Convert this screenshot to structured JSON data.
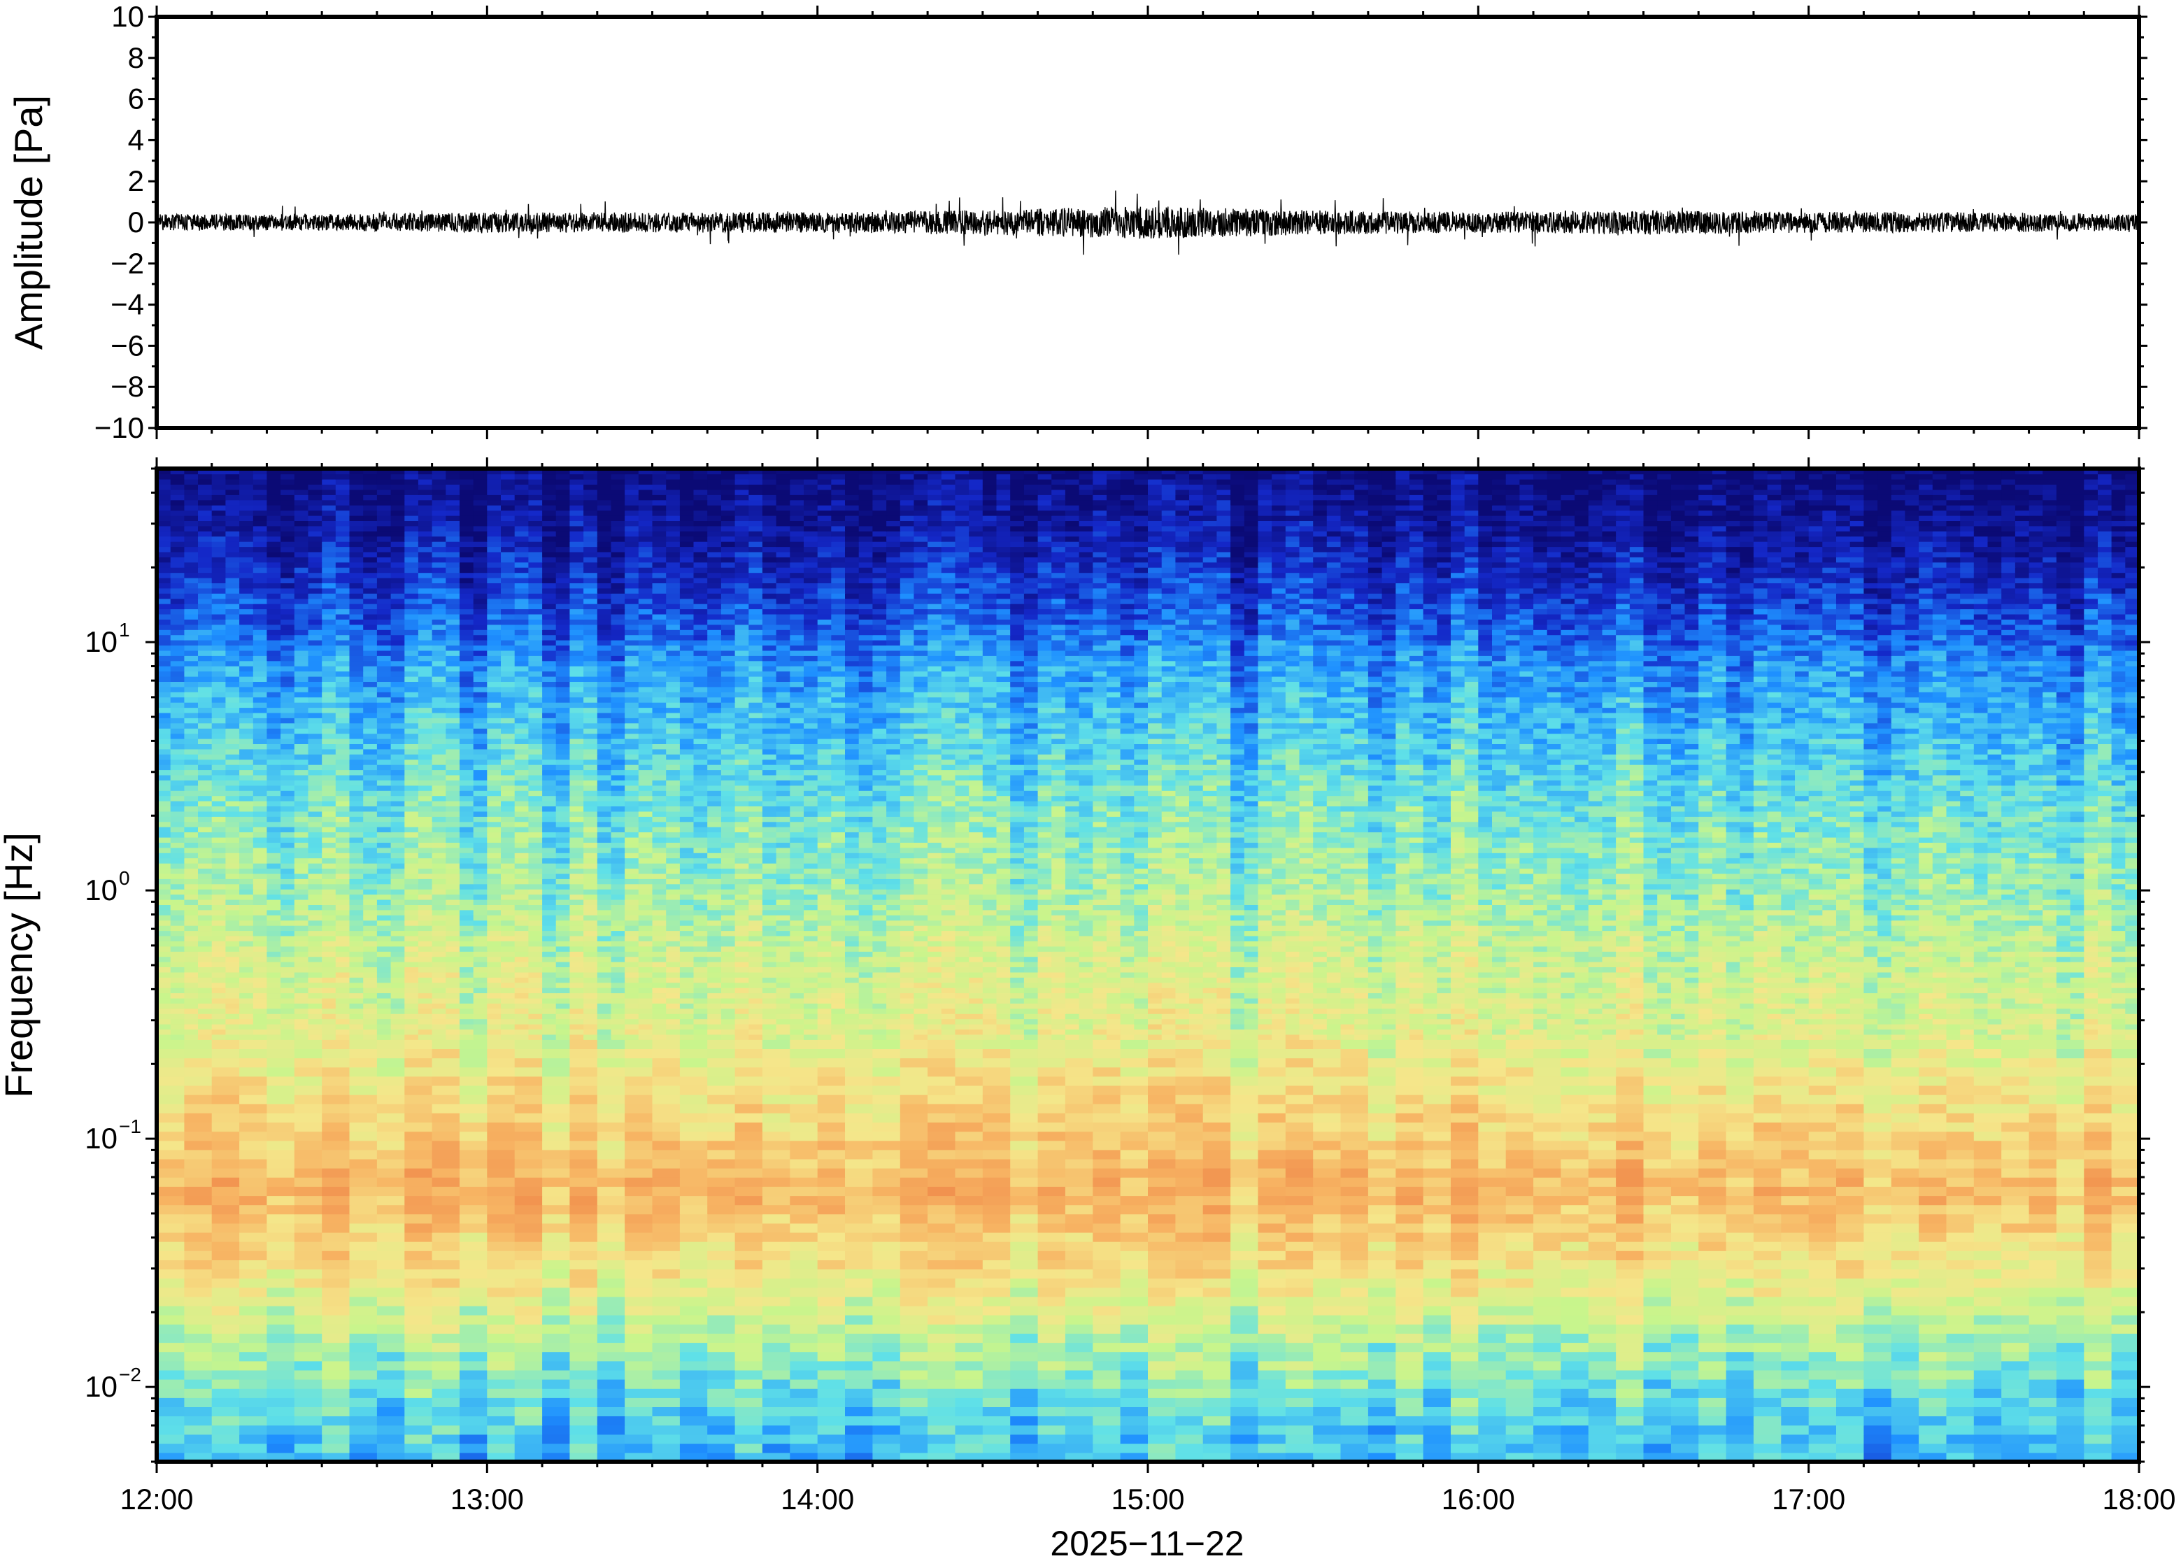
{
  "chart_data": [
    {
      "type": "line",
      "name": "waveform",
      "ylabel": "Amplitude [Pa]",
      "ylim": [
        -10,
        10
      ],
      "yticks": [
        10,
        8,
        6,
        4,
        2,
        0,
        -2,
        -4,
        -6,
        -8,
        -10
      ],
      "ytick_labels": [
        "10",
        "8",
        "6",
        "4",
        "2",
        "0",
        "−2",
        "−4",
        "−6",
        "−8",
        "−10"
      ],
      "xlim": [
        "12:00",
        "18:00"
      ],
      "series": [
        {
          "color": "#000000",
          "baseline": 0,
          "x_hours": [
            12.0,
            12.5,
            13.0,
            13.5,
            14.0,
            14.5,
            15.0,
            15.5,
            16.0,
            16.5,
            17.0,
            17.5,
            18.0
          ],
          "envelope_pa": [
            0.4,
            0.4,
            0.5,
            0.5,
            0.5,
            0.6,
            0.8,
            0.6,
            0.5,
            0.6,
            0.5,
            0.5,
            0.4
          ]
        }
      ],
      "grid": false
    },
    {
      "type": "heatmap",
      "name": "spectrogram",
      "ylabel": "Frequency [Hz]",
      "yscale": "log",
      "ylim": [
        0.005,
        50
      ],
      "yticks": [
        0.01,
        0.1,
        1,
        10
      ],
      "ytick_labels": [
        {
          "base": "10",
          "exp": "−2"
        },
        {
          "base": "10",
          "exp": "−1"
        },
        {
          "base": "10",
          "exp": "0"
        },
        {
          "base": "10",
          "exp": "1"
        }
      ],
      "xlabel": "2025−11−22",
      "xticks": [
        "12:00",
        "13:00",
        "14:00",
        "15:00",
        "16:00",
        "17:00",
        "18:00"
      ],
      "xlim": [
        "12:00",
        "18:00"
      ],
      "colormap": [
        "#0b0a75",
        "#1428c8",
        "#1e90ff",
        "#5fe0e8",
        "#c8f58c",
        "#f5e68a",
        "#f7b463",
        "#f08a4a"
      ],
      "power_profile": {
        "log10_freq": [
          -2.3,
          -2.1,
          -1.8,
          -1.5,
          -1.2,
          -0.9,
          -0.6,
          -0.3,
          0.0,
          0.3,
          0.6,
          0.9,
          1.1,
          1.3,
          1.5,
          1.7
        ],
        "level": [
          0.35,
          0.4,
          0.55,
          0.72,
          0.85,
          0.74,
          0.64,
          0.6,
          0.52,
          0.46,
          0.38,
          0.3,
          0.2,
          0.12,
          0.05,
          0.0
        ]
      },
      "grid": false
    }
  ]
}
